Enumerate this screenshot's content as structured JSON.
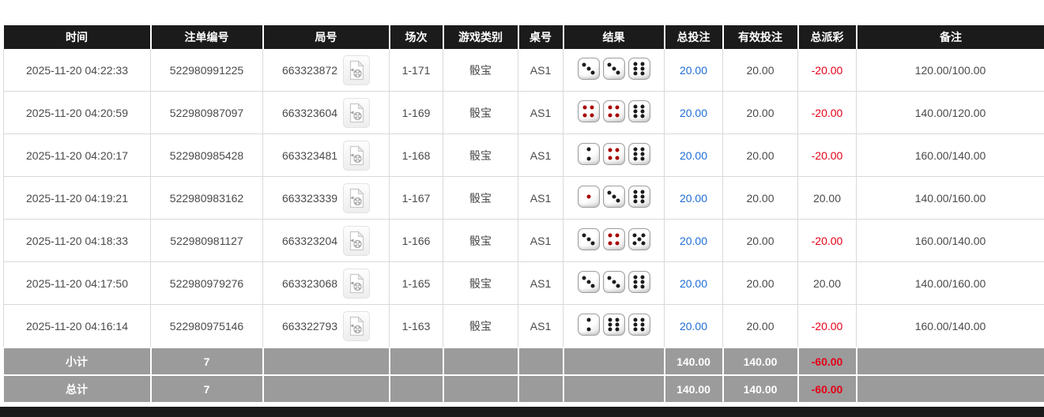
{
  "colors": {
    "header_bg": "#1b1b1b",
    "footer_bg": "#9b9b9b",
    "accent_blue": "#1e6dd8",
    "negative_red": "#e60017",
    "dice_red_dot": "#a80000",
    "dice_black_dot": "#1c1c1c"
  },
  "table": {
    "columns": [
      {
        "key": "time",
        "label": "时间"
      },
      {
        "key": "bet_no",
        "label": "注单编号"
      },
      {
        "key": "round_no",
        "label": "局号"
      },
      {
        "key": "session",
        "label": "场次"
      },
      {
        "key": "game_type",
        "label": "游戏类别"
      },
      {
        "key": "table_no",
        "label": "桌号"
      },
      {
        "key": "result",
        "label": "结果"
      },
      {
        "key": "total_bet",
        "label": "总投注"
      },
      {
        "key": "valid_bet",
        "label": "有效投注"
      },
      {
        "key": "payout",
        "label": "总派彩"
      },
      {
        "key": "remark",
        "label": "备注"
      }
    ],
    "rows": [
      {
        "time": "2025-11-20 04:22:33",
        "bet_no": "522980991225",
        "round_no": "663323872",
        "session": "1-171",
        "game_type": "骰宝",
        "table_no": "AS1",
        "dice": [
          3,
          3,
          6
        ],
        "total_bet": "20.00",
        "valid_bet": "20.00",
        "payout": "-20.00",
        "remark": "120.00/100.00"
      },
      {
        "time": "2025-11-20 04:20:59",
        "bet_no": "522980987097",
        "round_no": "663323604",
        "session": "1-169",
        "game_type": "骰宝",
        "table_no": "AS1",
        "dice": [
          4,
          4,
          6
        ],
        "total_bet": "20.00",
        "valid_bet": "20.00",
        "payout": "-20.00",
        "remark": "140.00/120.00"
      },
      {
        "time": "2025-11-20 04:20:17",
        "bet_no": "522980985428",
        "round_no": "663323481",
        "session": "1-168",
        "game_type": "骰宝",
        "table_no": "AS1",
        "dice": [
          2,
          4,
          6
        ],
        "total_bet": "20.00",
        "valid_bet": "20.00",
        "payout": "-20.00",
        "remark": "160.00/140.00"
      },
      {
        "time": "2025-11-20 04:19:21",
        "bet_no": "522980983162",
        "round_no": "663323339",
        "session": "1-167",
        "game_type": "骰宝",
        "table_no": "AS1",
        "dice": [
          1,
          3,
          6
        ],
        "total_bet": "20.00",
        "valid_bet": "20.00",
        "payout": "20.00",
        "remark": "140.00/160.00"
      },
      {
        "time": "2025-11-20 04:18:33",
        "bet_no": "522980981127",
        "round_no": "663323204",
        "session": "1-166",
        "game_type": "骰宝",
        "table_no": "AS1",
        "dice": [
          3,
          4,
          5
        ],
        "total_bet": "20.00",
        "valid_bet": "20.00",
        "payout": "-20.00",
        "remark": "160.00/140.00"
      },
      {
        "time": "2025-11-20 04:17:50",
        "bet_no": "522980979276",
        "round_no": "663323068",
        "session": "1-165",
        "game_type": "骰宝",
        "table_no": "AS1",
        "dice": [
          3,
          3,
          6
        ],
        "total_bet": "20.00",
        "valid_bet": "20.00",
        "payout": "20.00",
        "remark": "140.00/160.00"
      },
      {
        "time": "2025-11-20 04:16:14",
        "bet_no": "522980975146",
        "round_no": "663322793",
        "session": "1-163",
        "game_type": "骰宝",
        "table_no": "AS1",
        "dice": [
          2,
          6,
          6
        ],
        "total_bet": "20.00",
        "valid_bet": "20.00",
        "payout": "-20.00",
        "remark": "160.00/140.00"
      }
    ],
    "subtotal": {
      "label": "小计",
      "count": "7",
      "total_bet": "140.00",
      "valid_bet": "140.00",
      "payout": "-60.00"
    },
    "total": {
      "label": "总计",
      "count": "7",
      "total_bet": "140.00",
      "valid_bet": "140.00",
      "payout": "-60.00"
    }
  },
  "icons": {
    "video_replay": "video-replay-icon"
  }
}
